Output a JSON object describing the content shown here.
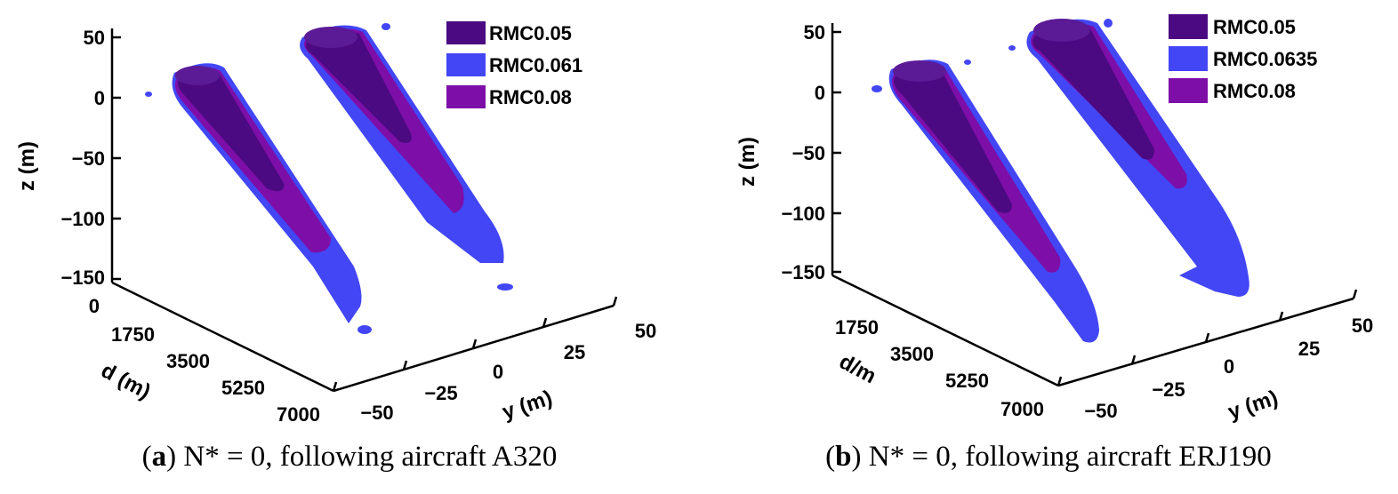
{
  "colors": {
    "rmc_low": "#4b0a82",
    "rmc_mid": "#4246f5",
    "rmc_high": "#7d0ea8",
    "axis": "#000000"
  },
  "chart_data": [
    {
      "type": "3d-isosurface",
      "panel_letter": "a",
      "caption_rest": " N* = 0, following aircraft A320",
      "zlabel": "z (m)",
      "dlabel": "d (m)",
      "ylabel": "y (m)",
      "z_ticks": [
        "50",
        "0",
        "−50",
        "−100",
        "−150"
      ],
      "d_ticks": [
        "0",
        "1750",
        "3500",
        "5250",
        "7000"
      ],
      "y_ticks": [
        "−50",
        "−25",
        "0",
        "25",
        "50"
      ],
      "zlim": [
        -150,
        50
      ],
      "dlim": [
        0,
        7000
      ],
      "ylim": [
        -50,
        50
      ],
      "legend": [
        "RMC0.05",
        "RMC0.061",
        "RMC0.08"
      ],
      "wakes": [
        {
          "y_center": -22,
          "z_top": 10,
          "d_extent": {
            "RMC0.05": 2100,
            "RMC0.061": 5400,
            "RMC0.08": 3900
          }
        },
        {
          "y_center": 22,
          "z_top": 45,
          "d_extent": {
            "RMC0.05": 2300,
            "RMC0.061": 6000,
            "RMC0.08": 3800
          }
        }
      ]
    },
    {
      "type": "3d-isosurface",
      "panel_letter": "b",
      "caption_rest": " N* = 0, following aircraft ERJ190",
      "zlabel": "z (m)",
      "dlabel": "d/m",
      "ylabel": "y (m)",
      "z_ticks": [
        "50",
        "0",
        "−50",
        "−100",
        "−150"
      ],
      "d_ticks": [
        "1750",
        "3500",
        "5250",
        "7000"
      ],
      "y_ticks": [
        "−50",
        "−25",
        "0",
        "25",
        "50"
      ],
      "zlim": [
        -150,
        50
      ],
      "dlim": [
        0,
        7000
      ],
      "ylim": [
        -50,
        50
      ],
      "legend": [
        "RMC0.05",
        "RMC0.0635",
        "RMC0.08"
      ],
      "wakes": [
        {
          "y_center": -22,
          "z_top": 10,
          "d_extent": {
            "RMC0.05": 2300,
            "RMC0.0635": 6200,
            "RMC0.08": 4400
          }
        },
        {
          "y_center": 22,
          "z_top": 45,
          "d_extent": {
            "RMC0.05": 2500,
            "RMC0.0635": 6000,
            "RMC0.08": 3900
          }
        }
      ]
    }
  ]
}
